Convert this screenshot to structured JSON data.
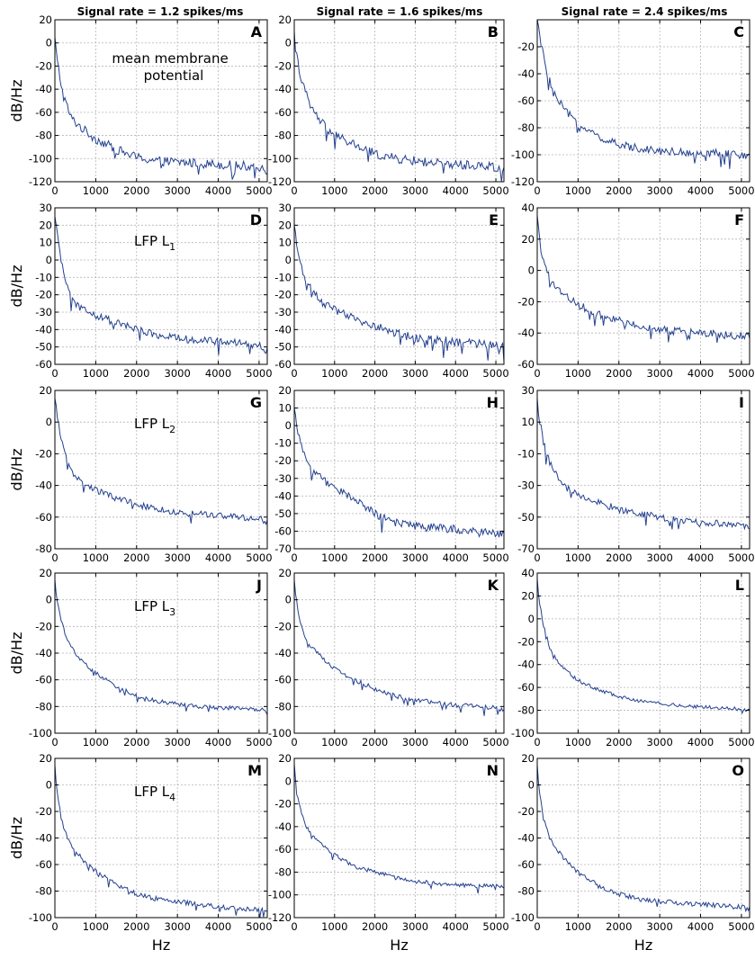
{
  "column_titles": [
    "Signal rate = 1.2 spikes/ms",
    "Signal rate = 1.6 spikes/ms",
    "Signal rate = 2.4 spikes/ms"
  ],
  "colors": {
    "series": "#24418f",
    "grid": "#b5b5b5",
    "frame": "#000000"
  },
  "chart_data": [
    {
      "type": "line",
      "panel": "A",
      "row": 0,
      "col": 0,
      "annotation": "mean membrane potential",
      "ylabel": "dB/Hz",
      "xlabel": "",
      "xlim": [
        0,
        5200
      ],
      "ylim": [
        -120,
        20
      ],
      "xticks": [
        0,
        1000,
        2000,
        3000,
        4000,
        5000
      ],
      "yticks": [
        20,
        0,
        -20,
        -40,
        -60,
        -80,
        -100,
        -120
      ],
      "grid": true,
      "x": [
        0,
        50,
        200,
        400,
        700,
        1000,
        1500,
        2000,
        2500,
        3000,
        3500,
        4000,
        4500,
        5000,
        5200
      ],
      "y": [
        5,
        -15,
        -45,
        -65,
        -75,
        -83,
        -92,
        -99,
        -102,
        -103,
        -104,
        -105,
        -106,
        -107,
        -110
      ],
      "noise": 4
    },
    {
      "type": "line",
      "panel": "B",
      "row": 0,
      "col": 1,
      "annotation": "",
      "ylabel": "",
      "xlabel": "",
      "xlim": [
        0,
        5200
      ],
      "ylim": [
        -120,
        20
      ],
      "xticks": [
        0,
        1000,
        2000,
        3000,
        4000,
        5000
      ],
      "yticks": [
        20,
        0,
        -20,
        -40,
        -60,
        -80,
        -100,
        -120
      ],
      "grid": true,
      "x": [
        0,
        50,
        200,
        400,
        700,
        1000,
        1500,
        2000,
        2500,
        3000,
        3500,
        4000,
        4500,
        5000,
        5200
      ],
      "y": [
        10,
        -10,
        -35,
        -55,
        -70,
        -80,
        -88,
        -96,
        -100,
        -102,
        -104,
        -105,
        -106,
        -107,
        -110
      ],
      "noise": 4
    },
    {
      "type": "line",
      "panel": "C",
      "row": 0,
      "col": 2,
      "annotation": "",
      "ylabel": "",
      "xlabel": "",
      "xlim": [
        0,
        5200
      ],
      "ylim": [
        -120,
        0
      ],
      "xticks": [
        0,
        1000,
        2000,
        3000,
        4000,
        5000
      ],
      "yticks": [
        -20,
        -40,
        -60,
        -80,
        -100,
        -120
      ],
      "grid": true,
      "x": [
        0,
        50,
        200,
        400,
        700,
        1000,
        1500,
        2000,
        2500,
        3000,
        3500,
        4000,
        4500,
        5000,
        5200
      ],
      "y": [
        0,
        -10,
        -35,
        -55,
        -68,
        -77,
        -87,
        -93,
        -95,
        -97,
        -98,
        -99,
        -99,
        -100,
        -102
      ],
      "noise": 3
    },
    {
      "type": "line",
      "panel": "D",
      "row": 1,
      "col": 0,
      "annotation": "LFP L",
      "annotation_sub": "1",
      "ylabel": "dB/Hz",
      "xlabel": "",
      "xlim": [
        0,
        5200
      ],
      "ylim": [
        -60,
        30
      ],
      "xticks": [
        0,
        1000,
        2000,
        3000,
        4000,
        5000
      ],
      "yticks": [
        30,
        20,
        10,
        0,
        -10,
        -20,
        -30,
        -40,
        -50,
        -60
      ],
      "grid": true,
      "x": [
        0,
        50,
        150,
        300,
        500,
        800,
        1000,
        1500,
        2000,
        2500,
        3000,
        3500,
        4000,
        4500,
        5000,
        5200
      ],
      "y": [
        25,
        15,
        0,
        -15,
        -25,
        -30,
        -32,
        -36,
        -40,
        -43,
        -45,
        -46,
        -47,
        -48,
        -49,
        -52
      ],
      "noise": 2.2
    },
    {
      "type": "line",
      "panel": "E",
      "row": 1,
      "col": 1,
      "annotation": "",
      "ylabel": "",
      "xlabel": "",
      "xlim": [
        0,
        5200
      ],
      "ylim": [
        -60,
        30
      ],
      "xticks": [
        0,
        1000,
        2000,
        3000,
        4000,
        5000
      ],
      "yticks": [
        30,
        20,
        10,
        0,
        -10,
        -20,
        -30,
        -40,
        -50,
        -60
      ],
      "grid": true,
      "x": [
        0,
        50,
        150,
        300,
        500,
        800,
        1000,
        1500,
        2000,
        2500,
        3000,
        3500,
        4000,
        4500,
        5000,
        5200
      ],
      "y": [
        20,
        10,
        -2,
        -12,
        -20,
        -26,
        -29,
        -34,
        -38,
        -42,
        -45,
        -46,
        -47,
        -48,
        -49,
        -50
      ],
      "noise": 2.5
    },
    {
      "type": "line",
      "panel": "F",
      "row": 1,
      "col": 2,
      "annotation": "",
      "ylabel": "",
      "xlabel": "",
      "xlim": [
        0,
        5200
      ],
      "ylim": [
        -60,
        40
      ],
      "xticks": [
        0,
        1000,
        2000,
        3000,
        4000,
        5000
      ],
      "yticks": [
        40,
        20,
        0,
        -20,
        -40,
        -60
      ],
      "grid": true,
      "x": [
        0,
        50,
        150,
        300,
        500,
        800,
        1000,
        1500,
        2000,
        2500,
        3000,
        3500,
        4000,
        4500,
        5000,
        5200
      ],
      "y": [
        35,
        20,
        5,
        -5,
        -12,
        -18,
        -22,
        -28,
        -32,
        -35,
        -38,
        -39,
        -40,
        -41,
        -42,
        -43
      ],
      "noise": 2.5
    },
    {
      "type": "line",
      "panel": "G",
      "row": 2,
      "col": 0,
      "annotation": "LFP L",
      "annotation_sub": "2",
      "ylabel": "dB/Hz",
      "xlabel": "",
      "xlim": [
        0,
        5200
      ],
      "ylim": [
        -80,
        20
      ],
      "xticks": [
        0,
        1000,
        2000,
        3000,
        4000,
        5000
      ],
      "yticks": [
        20,
        0,
        -20,
        -40,
        -60,
        -80
      ],
      "grid": true,
      "x": [
        0,
        50,
        150,
        300,
        500,
        800,
        1000,
        1500,
        2000,
        2500,
        3000,
        3500,
        4000,
        4500,
        5000,
        5200
      ],
      "y": [
        15,
        5,
        -10,
        -25,
        -35,
        -40,
        -43,
        -48,
        -52,
        -55,
        -57,
        -58,
        -59,
        -60,
        -61,
        -63
      ],
      "noise": 2
    },
    {
      "type": "line",
      "panel": "H",
      "row": 2,
      "col": 1,
      "annotation": "",
      "ylabel": "",
      "xlabel": "",
      "xlim": [
        0,
        5200
      ],
      "ylim": [
        -70,
        20
      ],
      "xticks": [
        0,
        1000,
        2000,
        3000,
        4000,
        5000
      ],
      "yticks": [
        20,
        10,
        0,
        -10,
        -20,
        -30,
        -40,
        -50,
        -60,
        -70
      ],
      "grid": true,
      "x": [
        0,
        50,
        150,
        300,
        500,
        800,
        1000,
        1500,
        2000,
        2500,
        3000,
        3500,
        4000,
        4500,
        5000,
        5200
      ],
      "y": [
        10,
        0,
        -10,
        -20,
        -27,
        -32,
        -35,
        -42,
        -50,
        -55,
        -57,
        -58,
        -59,
        -60,
        -61,
        -62
      ],
      "noise": 2.3
    },
    {
      "type": "line",
      "panel": "I",
      "row": 2,
      "col": 2,
      "annotation": "",
      "ylabel": "",
      "xlabel": "",
      "xlim": [
        0,
        5200
      ],
      "ylim": [
        -70,
        30
      ],
      "xticks": [
        0,
        1000,
        2000,
        3000,
        4000,
        5000
      ],
      "yticks": [
        30,
        10,
        -10,
        -30,
        -50,
        -70
      ],
      "grid": true,
      "x": [
        0,
        50,
        150,
        300,
        500,
        800,
        1000,
        1500,
        2000,
        2500,
        3000,
        3500,
        4000,
        4500,
        5000,
        5200
      ],
      "y": [
        25,
        12,
        -2,
        -15,
        -25,
        -32,
        -36,
        -41,
        -45,
        -48,
        -50,
        -52,
        -53,
        -54,
        -55,
        -56
      ],
      "noise": 2.2
    },
    {
      "type": "line",
      "panel": "J",
      "row": 3,
      "col": 0,
      "annotation": "LFP L",
      "annotation_sub": "3",
      "ylabel": "dB/Hz",
      "xlabel": "",
      "xlim": [
        0,
        5200
      ],
      "ylim": [
        -100,
        20
      ],
      "xticks": [
        0,
        1000,
        2000,
        3000,
        4000,
        5000
      ],
      "yticks": [
        20,
        0,
        -20,
        -40,
        -60,
        -80,
        -100
      ],
      "grid": true,
      "x": [
        0,
        50,
        150,
        300,
        500,
        800,
        1000,
        1500,
        2000,
        2500,
        3000,
        3500,
        4000,
        4500,
        5000,
        5200
      ],
      "y": [
        15,
        0,
        -15,
        -30,
        -40,
        -50,
        -55,
        -65,
        -72,
        -76,
        -78,
        -80,
        -81,
        -81,
        -82,
        -83
      ],
      "noise": 1.5
    },
    {
      "type": "line",
      "panel": "K",
      "row": 3,
      "col": 1,
      "annotation": "",
      "ylabel": "",
      "xlabel": "",
      "xlim": [
        0,
        5200
      ],
      "ylim": [
        -100,
        20
      ],
      "xticks": [
        0,
        1000,
        2000,
        3000,
        4000,
        5000
      ],
      "yticks": [
        20,
        0,
        -20,
        -40,
        -60,
        -80,
        -100
      ],
      "grid": true,
      "x": [
        0,
        50,
        150,
        300,
        500,
        800,
        1000,
        1500,
        2000,
        2500,
        3000,
        3500,
        4000,
        4500,
        5000,
        5200
      ],
      "y": [
        15,
        0,
        -18,
        -30,
        -38,
        -46,
        -52,
        -60,
        -67,
        -72,
        -75,
        -77,
        -79,
        -80,
        -81,
        -83
      ],
      "noise": 1.7
    },
    {
      "type": "line",
      "panel": "L",
      "row": 3,
      "col": 2,
      "annotation": "",
      "ylabel": "",
      "xlabel": "",
      "xlim": [
        0,
        5200
      ],
      "ylim": [
        -100,
        40
      ],
      "xticks": [
        0,
        1000,
        2000,
        3000,
        4000,
        5000
      ],
      "yticks": [
        40,
        20,
        0,
        -20,
        -40,
        -60,
        -80,
        -100
      ],
      "grid": true,
      "x": [
        0,
        50,
        150,
        300,
        500,
        800,
        1000,
        1500,
        2000,
        2500,
        3000,
        3500,
        4000,
        4500,
        5000,
        5200
      ],
      "y": [
        35,
        15,
        -5,
        -25,
        -38,
        -48,
        -54,
        -62,
        -68,
        -72,
        -74,
        -76,
        -77,
        -78,
        -79,
        -80
      ],
      "noise": 1.6
    },
    {
      "type": "line",
      "panel": "M",
      "row": 4,
      "col": 0,
      "annotation": "LFP L",
      "annotation_sub": "4",
      "ylabel": "dB/Hz",
      "xlabel": "Hz",
      "xlim": [
        0,
        5200
      ],
      "ylim": [
        -100,
        20
      ],
      "xticks": [
        0,
        1000,
        2000,
        3000,
        4000,
        5000
      ],
      "yticks": [
        20,
        0,
        -20,
        -40,
        -60,
        -80,
        -100
      ],
      "grid": true,
      "x": [
        0,
        50,
        150,
        300,
        500,
        800,
        1000,
        1500,
        2000,
        2500,
        3000,
        3500,
        4000,
        4500,
        5000,
        5200
      ],
      "y": [
        15,
        -5,
        -25,
        -40,
        -50,
        -60,
        -65,
        -75,
        -82,
        -86,
        -88,
        -90,
        -92,
        -93,
        -94,
        -95
      ],
      "noise": 1.8
    },
    {
      "type": "line",
      "panel": "N",
      "row": 4,
      "col": 1,
      "annotation": "",
      "ylabel": "",
      "xlabel": "Hz",
      "xlim": [
        0,
        5200
      ],
      "ylim": [
        -120,
        20
      ],
      "xticks": [
        0,
        1000,
        2000,
        3000,
        4000,
        5000
      ],
      "yticks": [
        20,
        0,
        -20,
        -40,
        -60,
        -80,
        -100,
        -120
      ],
      "grid": true,
      "x": [
        0,
        50,
        150,
        300,
        500,
        800,
        1000,
        1500,
        2000,
        2500,
        3000,
        3500,
        4000,
        4500,
        5000,
        5200
      ],
      "y": [
        15,
        -5,
        -25,
        -40,
        -50,
        -60,
        -65,
        -75,
        -80,
        -85,
        -88,
        -90,
        -91,
        -92,
        -92,
        -93
      ],
      "noise": 1.8
    },
    {
      "type": "line",
      "panel": "O",
      "row": 4,
      "col": 2,
      "annotation": "",
      "ylabel": "",
      "xlabel": "Hz",
      "xlim": [
        0,
        5200
      ],
      "ylim": [
        -100,
        20
      ],
      "xticks": [
        0,
        1000,
        2000,
        3000,
        4000,
        5000
      ],
      "yticks": [
        20,
        0,
        -20,
        -40,
        -60,
        -80,
        -100
      ],
      "grid": true,
      "x": [
        0,
        50,
        150,
        300,
        500,
        800,
        1000,
        1500,
        2000,
        2500,
        3000,
        3500,
        4000,
        4500,
        5000,
        5200
      ],
      "y": [
        15,
        -5,
        -25,
        -40,
        -50,
        -60,
        -66,
        -76,
        -82,
        -86,
        -88,
        -89,
        -90,
        -91,
        -92,
        -93
      ],
      "noise": 1.8
    }
  ]
}
